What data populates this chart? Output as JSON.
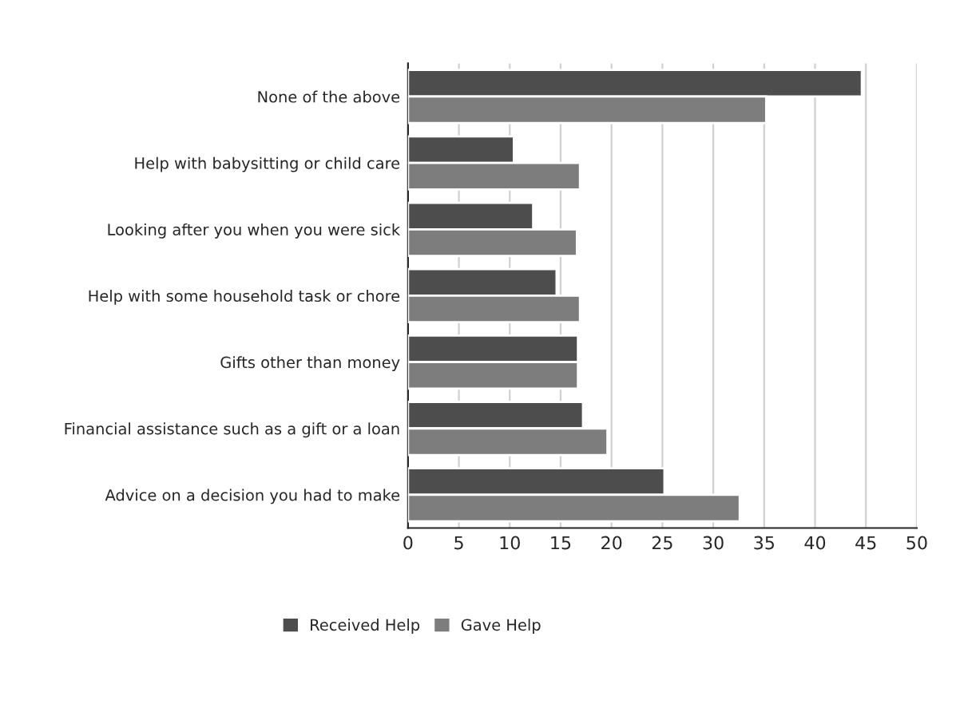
{
  "chart_data": {
    "type": "bar",
    "orientation": "horizontal",
    "categories": [
      "None of the above",
      "Help with babysitting or child care",
      "Looking after you when you were sick",
      "Help with some household task or chore",
      "Gifts other than money",
      "Financial assistance such as a gift or a loan",
      "Advice on a decision you had to make"
    ],
    "series": [
      {
        "name": "Received Help",
        "color": "#4d4d4d",
        "values": [
          44.6,
          10.4,
          12.3,
          14.6,
          16.7,
          17.2,
          25.2
        ]
      },
      {
        "name": "Gave Help",
        "color": "#7d7d7d",
        "values": [
          35.2,
          16.9,
          16.6,
          16.9,
          16.7,
          19.6,
          32.6
        ]
      }
    ],
    "xlim": [
      0,
      50
    ],
    "xticks": [
      0,
      5,
      10,
      15,
      20,
      25,
      30,
      35,
      40,
      45,
      50
    ],
    "grid": "x",
    "legend": "bottom"
  }
}
